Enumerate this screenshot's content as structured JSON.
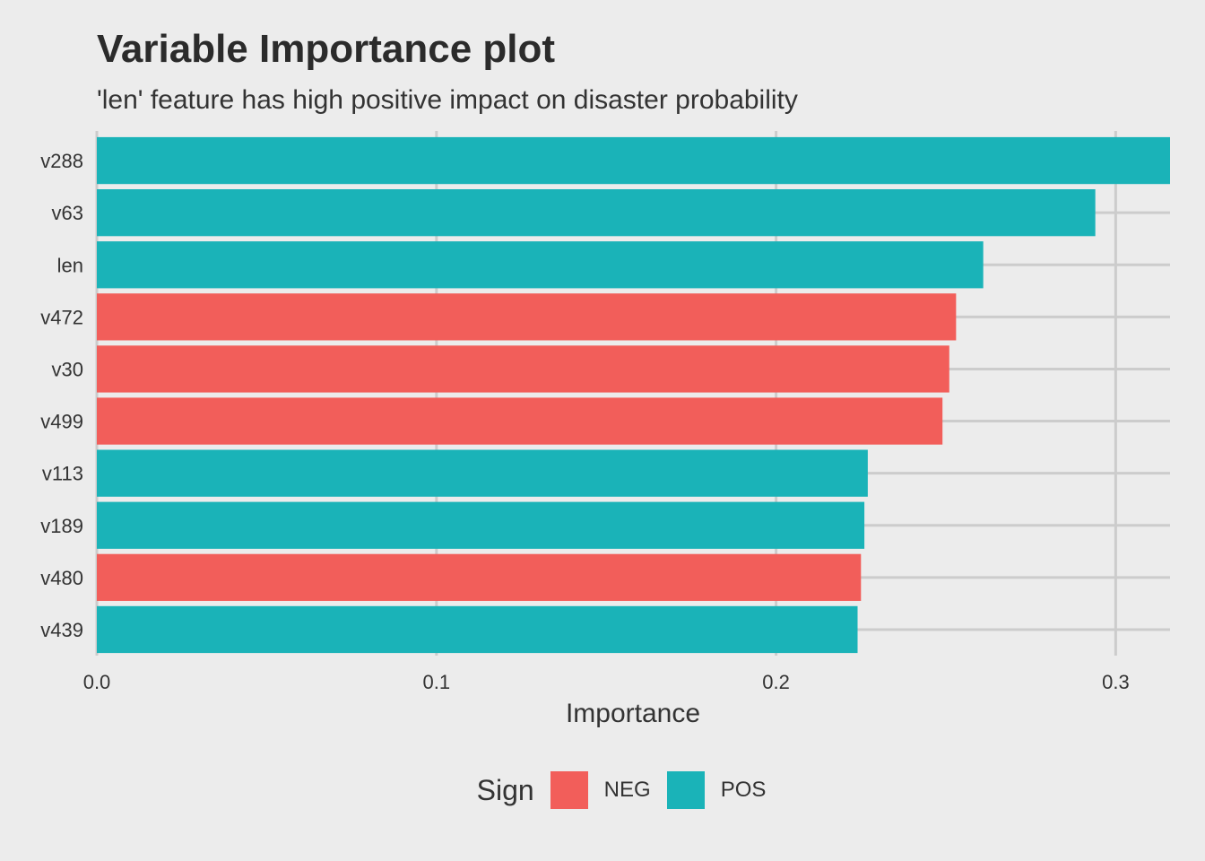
{
  "chart_data": {
    "type": "bar",
    "orientation": "horizontal",
    "title": "Variable Importance plot",
    "subtitle": "'len' feature has high positive impact on disaster probability",
    "xlabel": "Importance",
    "ylabel": "",
    "xlim": [
      0,
      0.316
    ],
    "x_ticks": [
      "0.0",
      "0.1",
      "0.2",
      "0.3"
    ],
    "x_tick_values": [
      0,
      0.1,
      0.2,
      0.3
    ],
    "grid": true,
    "legend_position": "bottom",
    "legend_title": "Sign",
    "legend": [
      {
        "label": "NEG",
        "color": "#f25e5a"
      },
      {
        "label": "POS",
        "color": "#1ab3b8"
      }
    ],
    "categories": [
      "v288",
      "v63",
      "len",
      "v472",
      "v30",
      "v499",
      "v113",
      "v189",
      "v480",
      "v439"
    ],
    "values": [
      0.316,
      0.294,
      0.261,
      0.253,
      0.251,
      0.249,
      0.227,
      0.226,
      0.225,
      0.224
    ],
    "signs": [
      "POS",
      "POS",
      "POS",
      "NEG",
      "NEG",
      "NEG",
      "POS",
      "POS",
      "NEG",
      "POS"
    ]
  }
}
